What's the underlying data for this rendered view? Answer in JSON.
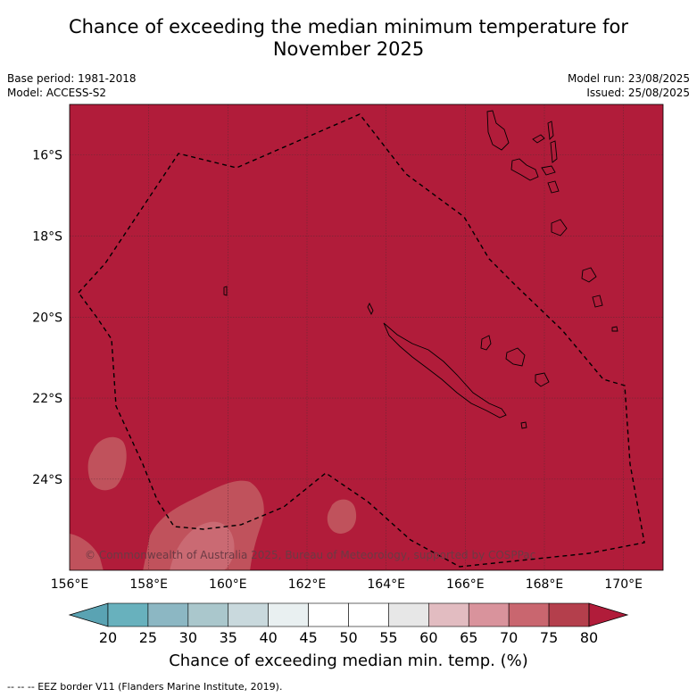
{
  "title": {
    "line1": "Chance of exceeding the median minimum temperature for",
    "line2": "November 2025"
  },
  "meta": {
    "base_period": "Base period: 1981-2018",
    "model": "Model: ACCESS-S2",
    "model_run": "Model run: 23/08/2025",
    "issued": "Issued: 25/08/2025"
  },
  "map": {
    "lon_range": [
      156,
      171
    ],
    "lat_range": [
      -26.25,
      -14.75
    ],
    "background_category": "80",
    "lat_ticks": [
      {
        "value": -16,
        "label": "16°S"
      },
      {
        "value": -18,
        "label": "18°S"
      },
      {
        "value": -20,
        "label": "20°S"
      },
      {
        "value": -22,
        "label": "22°S"
      },
      {
        "value": -24,
        "label": "24°S"
      }
    ],
    "lon_ticks": [
      {
        "value": 156,
        "label": "156°E"
      },
      {
        "value": 158,
        "label": "158°E"
      },
      {
        "value": 160,
        "label": "160°E"
      },
      {
        "value": 162,
        "label": "162°E"
      },
      {
        "value": 164,
        "label": "164°E"
      },
      {
        "value": 166,
        "label": "166°E"
      },
      {
        "value": 168,
        "label": "168°E"
      },
      {
        "value": 170,
        "label": "170°E"
      }
    ],
    "copyright": "© Commonwealth of Australia 2025, Bureau of Meteorology, supported by COSPPac",
    "colors": {
      "grid": "#5a2a33",
      "coast": "#000000",
      "eez": "#000000"
    }
  },
  "colorbar": {
    "ticks": [
      "20",
      "25",
      "30",
      "35",
      "40",
      "45",
      "50",
      "55",
      "60",
      "65",
      "70",
      "75",
      "80"
    ],
    "colors": [
      "#5aa3b3",
      "#68b1bd",
      "#8cb7c3",
      "#aac7cc",
      "#c9d9dd",
      "#e9f0f1",
      "#ffffff",
      "#ffffff",
      "#e7e7e7",
      "#e2bcc1",
      "#d9939c",
      "#c9666f",
      "#b43f4c",
      "#b11c3a"
    ],
    "label": "Chance of exceeding median min. temp. (%)"
  },
  "footnote": "--  --  -- EEZ border V11 (Flanders Marine Institute, 2019)."
}
